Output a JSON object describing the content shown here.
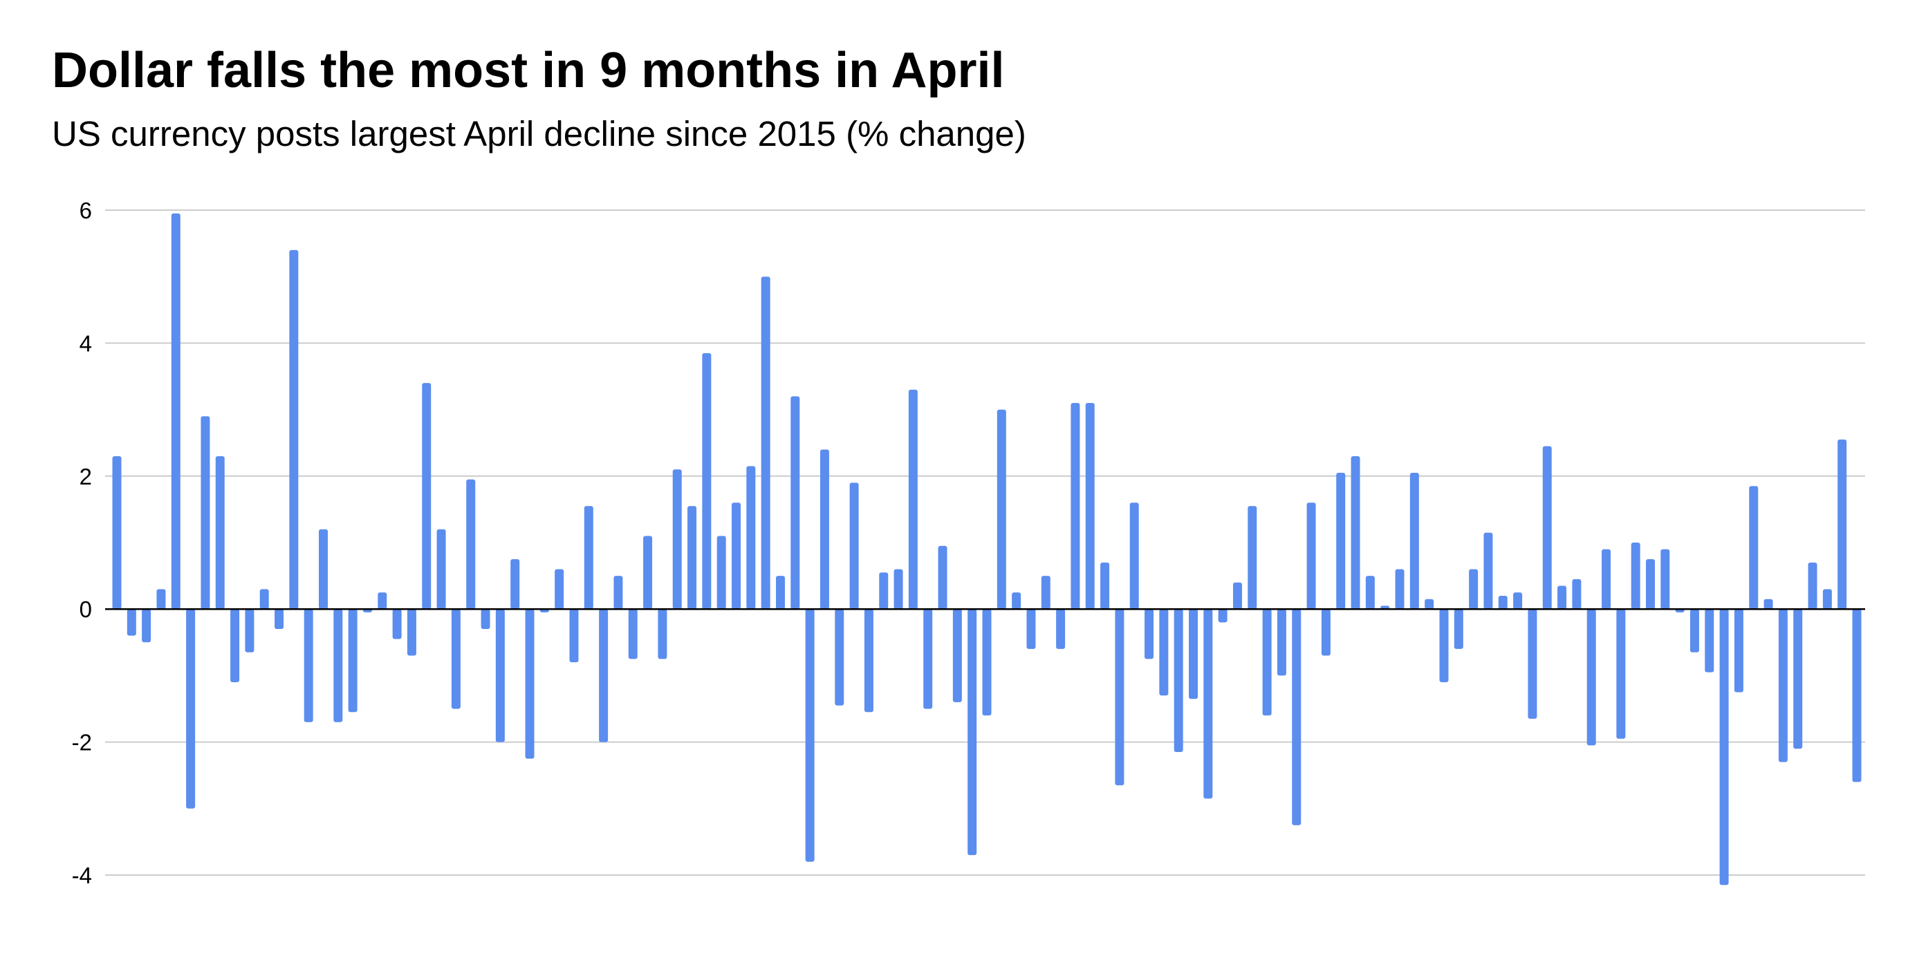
{
  "chart_data": {
    "type": "bar",
    "title": "Dollar falls the most in 9 months in April",
    "subtitle": "US currency posts largest April decline since 2015 (% change)",
    "xlabel": "",
    "ylabel": "",
    "ylim": [
      -4.2,
      6
    ],
    "yticks": [
      6,
      4,
      2,
      0,
      -2,
      -4
    ],
    "ytick_labels": [
      "6",
      "4",
      "2",
      "0",
      "-2",
      "-4"
    ],
    "grid": true,
    "legend": "none",
    "bar_color": "#5b8def",
    "grid_color": "#cccccc",
    "zero_line_color": "#000000",
    "values": [
      2.3,
      -0.4,
      -0.5,
      0.3,
      5.95,
      -3.0,
      2.9,
      2.3,
      -1.1,
      -0.65,
      0.3,
      -0.3,
      5.4,
      -1.7,
      1.2,
      -1.7,
      -1.55,
      -0.05,
      0.25,
      -0.45,
      -0.7,
      3.4,
      1.2,
      -1.5,
      1.95,
      -0.3,
      -2.0,
      0.75,
      -2.25,
      -0.05,
      0.6,
      -0.8,
      1.55,
      -2.0,
      0.5,
      -0.75,
      1.1,
      -0.75,
      2.1,
      1.55,
      3.85,
      1.1,
      1.6,
      2.15,
      5.0,
      0.5,
      3.2,
      -3.8,
      2.4,
      -1.45,
      1.9,
      -1.55,
      0.55,
      0.6,
      3.3,
      -1.5,
      0.95,
      -1.4,
      -3.7,
      -1.6,
      3.0,
      0.25,
      -0.6,
      0.5,
      -0.6,
      3.1,
      3.1,
      0.7,
      -2.65,
      1.6,
      -0.75,
      -1.3,
      -2.15,
      -1.35,
      -2.85,
      -0.2,
      0.4,
      1.55,
      -1.6,
      -1.0,
      -3.25,
      1.6,
      -0.7,
      2.05,
      2.3,
      0.5,
      0.05,
      0.6,
      2.05,
      0.15,
      -1.1,
      -0.6,
      0.6,
      1.15,
      0.2,
      0.25,
      -1.65,
      2.45,
      0.35,
      0.45,
      -2.05,
      0.9,
      -1.95,
      1.0,
      0.75,
      0.9,
      -0.05,
      -0.65,
      -0.95,
      -4.15,
      -1.25,
      1.85,
      0.15,
      -2.3,
      -2.1,
      0.7,
      0.3,
      2.55,
      -2.6
    ]
  }
}
